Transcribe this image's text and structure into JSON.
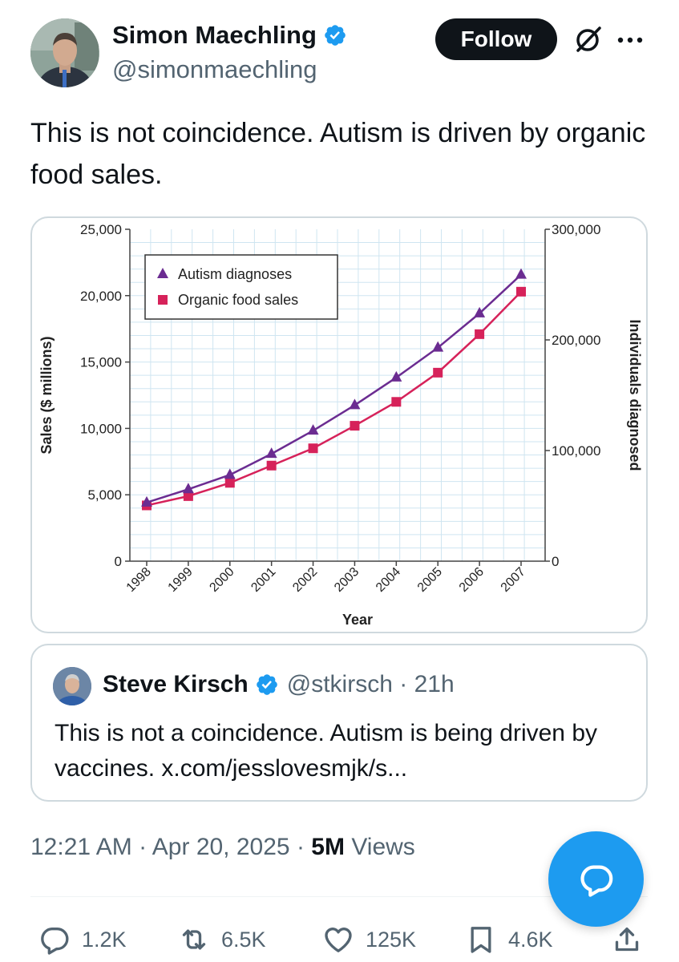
{
  "author": {
    "name": "Simon Maechling",
    "handle": "@simonmaechling",
    "avatar_icon": "avatar-photo",
    "verified_color": "#1d9bf0"
  },
  "follow_label": "Follow",
  "tweet_text": "This is not coincidence. Autism is driven by organic food sales.",
  "chart_data": {
    "type": "line",
    "x": [
      "1998",
      "1999",
      "2000",
      "2001",
      "2002",
      "2003",
      "2004",
      "2005",
      "2006",
      "2007"
    ],
    "xlabel": "Year",
    "ylabel_left": "Sales ($ millions)",
    "ylabel_right": "Individuals diagnosed",
    "left_ylim": [
      0,
      25000
    ],
    "right_ylim": [
      0,
      300000
    ],
    "left_ticks": [
      "0",
      "5,000",
      "10,000",
      "15,000",
      "20,000",
      "25,000"
    ],
    "right_ticks": [
      "0",
      "100,000",
      "200,000",
      "300,000"
    ],
    "grid": true,
    "legend_position": "top-left",
    "series": [
      {
        "name": "Autism diagnoses",
        "axis": "right",
        "marker": "triangle",
        "color": "#6b2c91",
        "values": [
          53000,
          65000,
          78000,
          97000,
          118000,
          141000,
          166000,
          193000,
          224000,
          259000
        ]
      },
      {
        "name": "Organic food sales",
        "axis": "left",
        "marker": "square",
        "color": "#d6225a",
        "values": [
          4200,
          4900,
          5900,
          7200,
          8500,
          10200,
          12000,
          14200,
          17100,
          20300
        ]
      }
    ]
  },
  "quote": {
    "name": "Steve Kirsch",
    "handle": "@stkirsch",
    "separator": "·",
    "time": "21h",
    "text": "This is not a coincidence. Autism is being driven by vaccines. x.com/jesslovesmjk/s..."
  },
  "meta": {
    "time": "12:21 AM",
    "sep1": "·",
    "date": "Apr 20, 2025",
    "sep2": "·",
    "views_count": "5M",
    "views_label": "Views"
  },
  "actions": {
    "replies": "1.2K",
    "reposts": "6.5K",
    "likes": "125K",
    "bookmarks": "4.6K"
  },
  "colors": {
    "accent": "#1d9bf0",
    "text": "#0f1419",
    "muted": "#536471",
    "border": "#cfd9de"
  }
}
